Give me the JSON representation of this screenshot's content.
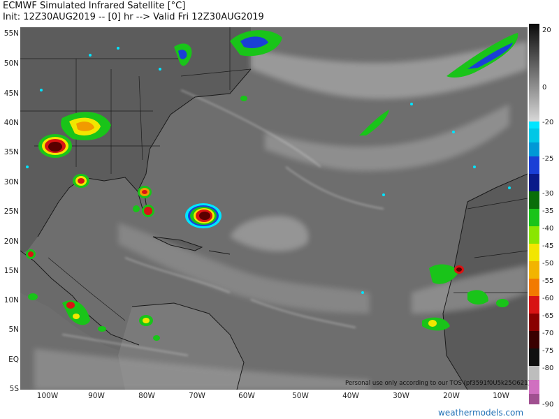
{
  "title_line1": "ECMWF Simulated Infrared Satellite [°C]",
  "title_line2": "Init: 12Z30AUG2019 -- [0] hr --> Valid Fri 12Z30AUG2019",
  "lat_labels": [
    "55N",
    "50N",
    "45N",
    "40N",
    "35N",
    "30N",
    "25N",
    "20N",
    "15N",
    "10N",
    "5N",
    "EQ",
    "5S"
  ],
  "lon_labels": [
    "100W",
    "90W",
    "80W",
    "70W",
    "60W",
    "50W",
    "40W",
    "30W",
    "20W",
    "10W"
  ],
  "colorbar": {
    "ticks": [
      "20",
      "0",
      "-20",
      "-25",
      "-30",
      "-35",
      "-40",
      "-45",
      "-50",
      "-55",
      "-60",
      "-65",
      "-70",
      "-75",
      "-80",
      "-90"
    ]
  },
  "colors": {
    "ocean": "#6f6f6f",
    "cold_cloud": "#e8e8e8",
    "cyan": "#00e5ff",
    "blue": "#1a3fd6",
    "green": "#19c419",
    "yellow": "#f2e600",
    "orange": "#f29a00",
    "red": "#d81414",
    "darkred": "#5a0000"
  },
  "disclaimer": "Personal use only according to our TOS (pf3591f0U5k25O621)",
  "brand": "weathermodels.com"
}
